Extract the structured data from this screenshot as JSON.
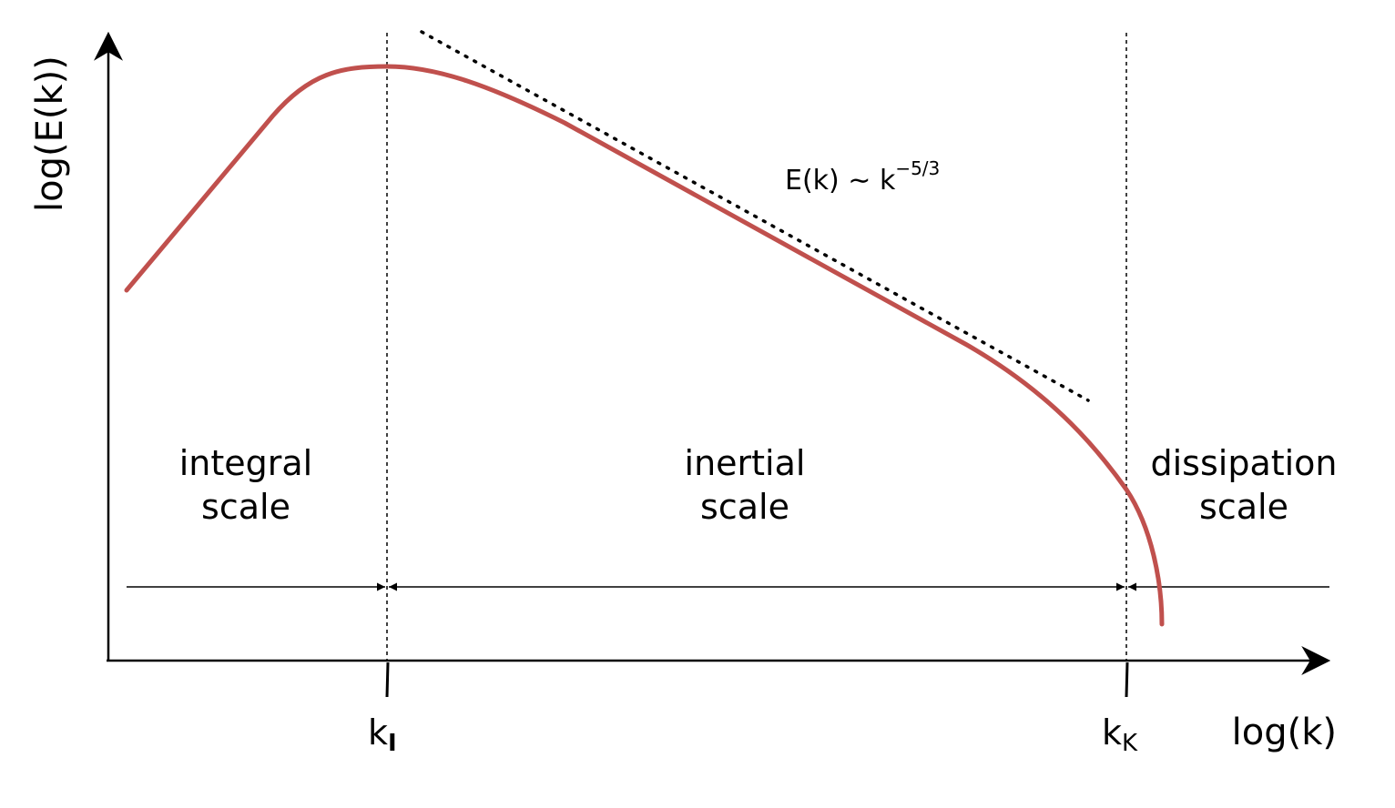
{
  "axes": {
    "xlabel": "log(k)",
    "ylabel": "log(E(k))"
  },
  "ticks": [
    {
      "base": "k",
      "sub": "I"
    },
    {
      "base": "k",
      "sub": "K"
    }
  ],
  "regions": [
    {
      "line1": "integral",
      "line2": "scale"
    },
    {
      "line1": "inertial",
      "line2": "scale"
    },
    {
      "line1": "dissipation",
      "line2": "scale"
    }
  ],
  "power_law": {
    "text": "E(k) ∼ k",
    "exponent": "−5/3"
  },
  "colors": {
    "curve": "#c0504d",
    "lines": "#000000"
  }
}
